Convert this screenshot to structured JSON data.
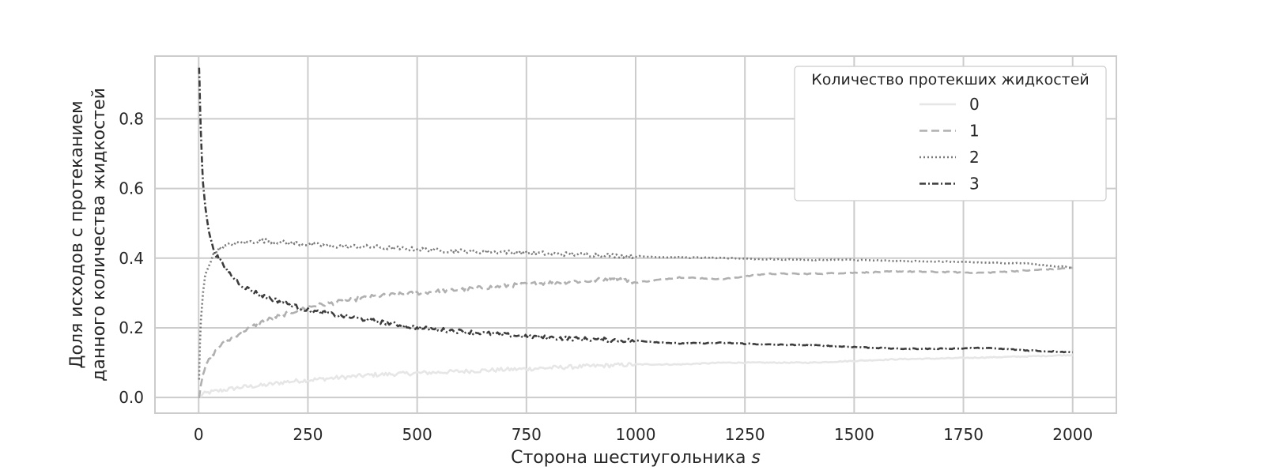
{
  "chart_data": {
    "type": "line",
    "xlabel": "Сторона шестиугольника",
    "xlabel_var": "s",
    "ylabel_lines": [
      "Доля исходов с протеканием",
      "данного количества жидкостей"
    ],
    "xlim": [
      -100,
      2100
    ],
    "ylim": [
      -0.045,
      0.98
    ],
    "x_ticks": [
      0,
      250,
      500,
      750,
      1000,
      1250,
      1500,
      1750,
      2000
    ],
    "y_ticks": [
      0.0,
      0.2,
      0.4,
      0.6,
      0.8
    ],
    "grid": true,
    "legend": {
      "title": "Количество протекших жидкостей",
      "placement": "top-right"
    },
    "series": [
      {
        "name": "0",
        "color": "#e6e6e6",
        "dash": "solid",
        "x": [
          1,
          10,
          25,
          50,
          100,
          150,
          200,
          250,
          300,
          400,
          500,
          600,
          700,
          750,
          800,
          900,
          1000,
          1100,
          1200,
          1300,
          1400,
          1500,
          1600,
          1700,
          1800,
          1900,
          2000
        ],
        "y": [
          0.0,
          0.01,
          0.015,
          0.02,
          0.03,
          0.035,
          0.045,
          0.05,
          0.055,
          0.065,
          0.07,
          0.075,
          0.08,
          0.082,
          0.085,
          0.09,
          0.095,
          0.095,
          0.1,
          0.1,
          0.1,
          0.105,
          0.11,
          0.112,
          0.115,
          0.118,
          0.122
        ]
      },
      {
        "name": "1",
        "color": "#b0b0b0",
        "dash": "dashed",
        "x": [
          1,
          5,
          10,
          20,
          30,
          50,
          75,
          100,
          150,
          200,
          250,
          300,
          400,
          500,
          600,
          700,
          750,
          800,
          900,
          950,
          1000,
          1100,
          1200,
          1300,
          1400,
          1500,
          1600,
          1700,
          1800,
          1900,
          2000
        ],
        "y": [
          0.0,
          0.04,
          0.07,
          0.1,
          0.12,
          0.15,
          0.17,
          0.19,
          0.22,
          0.24,
          0.26,
          0.27,
          0.29,
          0.3,
          0.31,
          0.32,
          0.325,
          0.33,
          0.335,
          0.345,
          0.33,
          0.345,
          0.34,
          0.355,
          0.355,
          0.358,
          0.362,
          0.36,
          0.358,
          0.365,
          0.372
        ]
      },
      {
        "name": "2",
        "color": "#7a7a7a",
        "dash": "dotted",
        "x": [
          1,
          3,
          5,
          10,
          15,
          20,
          30,
          40,
          50,
          75,
          100,
          150,
          200,
          250,
          300,
          400,
          500,
          600,
          700,
          800,
          900,
          1000,
          1100,
          1200,
          1300,
          1400,
          1500,
          1600,
          1700,
          1800,
          1900,
          2000
        ],
        "y": [
          0.05,
          0.15,
          0.22,
          0.3,
          0.35,
          0.37,
          0.4,
          0.42,
          0.43,
          0.44,
          0.445,
          0.45,
          0.445,
          0.44,
          0.435,
          0.432,
          0.425,
          0.42,
          0.418,
          0.413,
          0.41,
          0.405,
          0.402,
          0.4,
          0.397,
          0.395,
          0.395,
          0.392,
          0.39,
          0.387,
          0.385,
          0.372
        ]
      },
      {
        "name": "3",
        "color": "#3c3c3c",
        "dash": "dashdot",
        "x": [
          1,
          2,
          3,
          5,
          8,
          10,
          15,
          20,
          30,
          40,
          50,
          75,
          100,
          150,
          200,
          250,
          300,
          400,
          500,
          600,
          700,
          800,
          900,
          1000,
          1100,
          1200,
          1300,
          1400,
          1500,
          1600,
          1700,
          1800,
          1900,
          2000
        ],
        "y": [
          0.95,
          0.9,
          0.85,
          0.77,
          0.67,
          0.62,
          0.55,
          0.5,
          0.44,
          0.41,
          0.39,
          0.35,
          0.32,
          0.29,
          0.27,
          0.25,
          0.24,
          0.22,
          0.2,
          0.19,
          0.18,
          0.172,
          0.167,
          0.163,
          0.155,
          0.157,
          0.152,
          0.15,
          0.145,
          0.14,
          0.14,
          0.142,
          0.135,
          0.13
        ]
      }
    ]
  }
}
